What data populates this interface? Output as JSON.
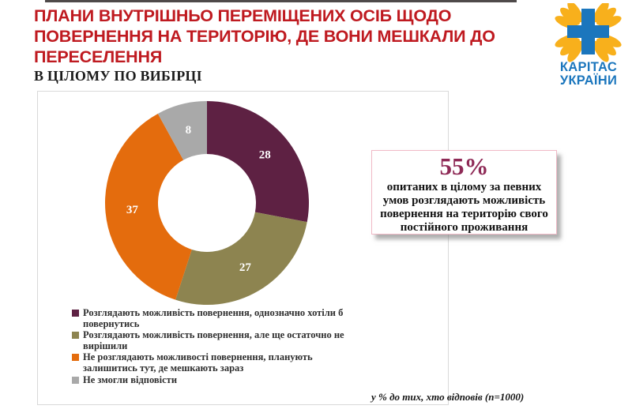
{
  "slide": {
    "title_lines": [
      "ПЛАНИ ВНУТРІШНЬО ПЕРЕМІЩЕНИХ ОСІБ ЩОДО",
      "ПОВЕРНЕННЯ НА ТЕРИТОРІЮ, ДЕ ВОНИ МЕШКАЛИ ДО",
      "ПЕРЕСЕЛЕННЯ"
    ],
    "title_color": "#bf1a20",
    "subtitle": "В ЦІЛОМУ ПО ВИБІРЦІ",
    "footnote": "у % до тих, хто відповів (n=1000)"
  },
  "logo": {
    "line1": "КАРІТАС",
    "line2": "УКРАЇНИ",
    "cross_color": "#1b76bd",
    "flame_color": "#f8b01c"
  },
  "callout": {
    "headline": "55%",
    "headline_color": "#8e2a56",
    "text": "опитаних в цілому за певних умов розглядають можливість повернення на територію свого постійного проживання"
  },
  "chart_data": {
    "type": "pie",
    "subtype": "donut",
    "title": "В цілому по вибірці",
    "unit": "% до тих, хто відповів",
    "n": "1000",
    "categories": [
      "Розглядають можливість повернення, однозначно хотіли б повернутись",
      "Розглядають можливість повернення, але ще остаточно не вирішили",
      "Не розглядають можливості повернення, планують залишитись тут, де мешкають зараз",
      "Не змогли відповісти"
    ],
    "values": [
      28,
      27,
      37,
      8
    ],
    "labels_shown": [
      "28",
      "27",
      "37",
      "8"
    ],
    "colors": [
      "#5e2143",
      "#8d8450",
      "#e46c0d",
      "#a9a9a9"
    ],
    "start_angle_deg": 0,
    "direction": "clockwise",
    "legend_position": "bottom-left"
  }
}
